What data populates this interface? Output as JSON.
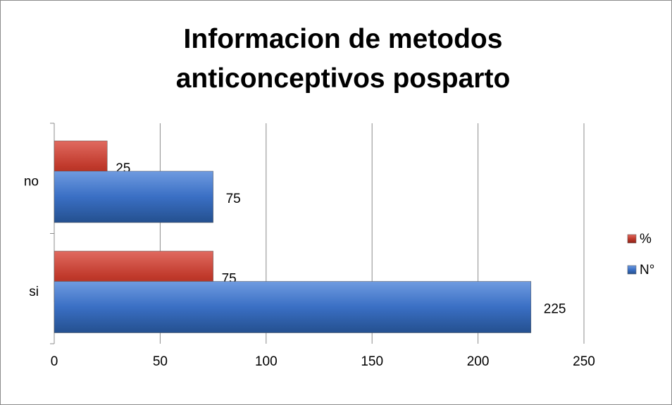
{
  "chart_data": {
    "type": "bar",
    "orientation": "horizontal",
    "title": "Informacion de metodos anticonceptivos posparto",
    "categories": [
      "si",
      "no"
    ],
    "series": [
      {
        "name": "%",
        "color": "#c0392b",
        "values": [
          75,
          25
        ]
      },
      {
        "name": "N°",
        "color": "#3a6fc4",
        "values": [
          225,
          75
        ]
      }
    ],
    "xlim": [
      0,
      250
    ],
    "xticks": [
      0,
      50,
      100,
      150,
      200,
      250
    ],
    "grid": true,
    "legend": "right"
  }
}
